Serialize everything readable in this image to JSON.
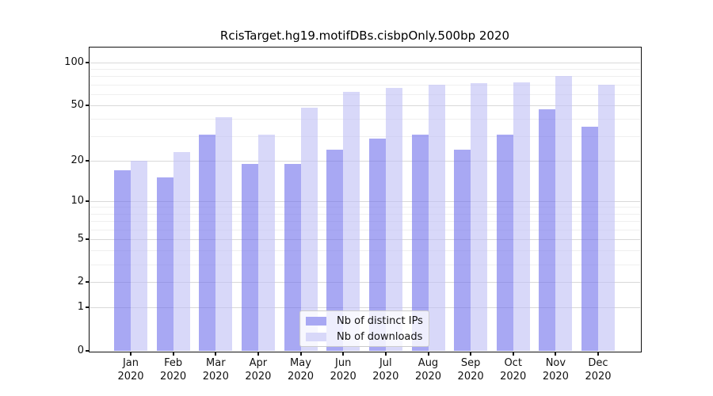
{
  "title": "RcisTarget.hg19.motifDBs.cisbpOnly.500bp 2020",
  "chart_data": {
    "type": "bar",
    "title": "RcisTarget.hg19.motifDBs.cisbpOnly.500bp 2020",
    "categories": [
      "Jan",
      "Feb",
      "Mar",
      "Apr",
      "May",
      "Jun",
      "Jul",
      "Aug",
      "Sep",
      "Oct",
      "Nov",
      "Dec"
    ],
    "year_label": "2020",
    "series": [
      {
        "name": "Nb of distinct IPs",
        "color": "#6e6eeb",
        "alpha": 0.6,
        "values": [
          17,
          15,
          31,
          19,
          19,
          24,
          29,
          31,
          24,
          31,
          47,
          35
        ]
      },
      {
        "name": "Nb of downloads",
        "color": "#bebef5",
        "alpha": 0.6,
        "values": [
          20,
          23,
          41,
          31,
          48,
          62,
          66,
          70,
          72,
          73,
          80,
          70
        ]
      }
    ],
    "xlabel": "",
    "ylabel": "",
    "y_scale": "log1p",
    "y_ticks": [
      0,
      1,
      2,
      5,
      10,
      20,
      50,
      100
    ],
    "y_minor_ticks": [
      3,
      4,
      6,
      7,
      8,
      9,
      30,
      40,
      60,
      70,
      80,
      90
    ],
    "ylim": [
      0,
      127.5
    ],
    "grid": true,
    "legend_position": "lower center"
  },
  "colors": {
    "background": "#ffffff",
    "spine": "#111111",
    "grid_major": "#d9d9d9",
    "grid_minor": "#efefef",
    "text": "#111111"
  }
}
